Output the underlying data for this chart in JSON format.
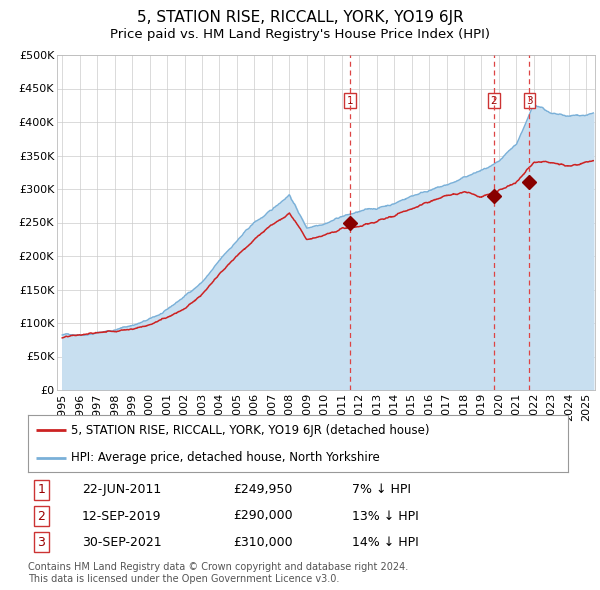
{
  "title": "5, STATION RISE, RICCALL, YORK, YO19 6JR",
  "subtitle": "Price paid vs. HM Land Registry's House Price Index (HPI)",
  "background_color": "#ffffff",
  "plot_bg_color": "#ffffff",
  "hpi_line_color": "#7ab0d8",
  "hpi_fill_color": "#c8dff0",
  "price_line_color": "#cc2222",
  "marker_color": "#880000",
  "vline_color": "#dd4444",
  "ylabel_values": [
    "£0",
    "£50K",
    "£100K",
    "£150K",
    "£200K",
    "£250K",
    "£300K",
    "£350K",
    "£400K",
    "£450K",
    "£500K"
  ],
  "ytick_values": [
    0,
    50000,
    100000,
    150000,
    200000,
    250000,
    300000,
    350000,
    400000,
    450000,
    500000
  ],
  "xmin": 1994.7,
  "xmax": 2025.5,
  "ymin": 0,
  "ymax": 500000,
  "transactions": [
    {
      "num": 1,
      "date_x": 2011.47,
      "price": 249950,
      "label": "1",
      "info": "22-JUN-2011",
      "amount": "£249,950",
      "pct": "7% ↓ HPI"
    },
    {
      "num": 2,
      "date_x": 2019.7,
      "price": 290000,
      "label": "2",
      "info": "12-SEP-2019",
      "amount": "£290,000",
      "pct": "13% ↓ HPI"
    },
    {
      "num": 3,
      "date_x": 2021.75,
      "price": 310000,
      "label": "3",
      "info": "30-SEP-2021",
      "amount": "£310,000",
      "pct": "14% ↓ HPI"
    }
  ],
  "legend_label_red": "5, STATION RISE, RICCALL, YORK, YO19 6JR (detached house)",
  "legend_label_blue": "HPI: Average price, detached house, North Yorkshire",
  "footnote": "Contains HM Land Registry data © Crown copyright and database right 2024.\nThis data is licensed under the Open Government Licence v3.0.",
  "title_fontsize": 11,
  "subtitle_fontsize": 9.5,
  "tick_fontsize": 8,
  "legend_fontsize": 8.5,
  "table_fontsize": 9
}
